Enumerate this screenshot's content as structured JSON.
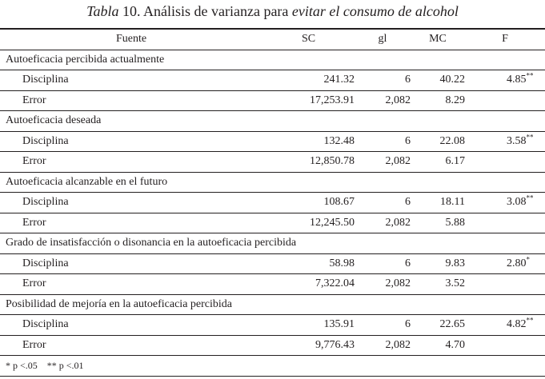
{
  "title": {
    "prefix": "Tabla",
    "number": "10.",
    "middle": "Análisis de varianza para",
    "italic": "evitar el consumo de alcohol"
  },
  "headers": {
    "fuente": "Fuente",
    "sc": "SC",
    "gl": "gl",
    "mc": "MC",
    "f": "F"
  },
  "sections": [
    {
      "name": "Autoeficacia percibida actualmente",
      "rows": [
        {
          "label": "Disciplina",
          "sc": "241.32",
          "gl": "6",
          "mc": "40.22",
          "f": "4.85",
          "sig": "**"
        },
        {
          "label": "Error",
          "sc": "17,253.91",
          "gl": "2,082",
          "mc": "8.29",
          "f": "",
          "sig": ""
        }
      ]
    },
    {
      "name": "Autoeficacia deseada",
      "rows": [
        {
          "label": "Disciplina",
          "sc": "132.48",
          "gl": "6",
          "mc": "22.08",
          "f": "3.58",
          "sig": "**"
        },
        {
          "label": "Error",
          "sc": "12,850.78",
          "gl": "2,082",
          "mc": "6.17",
          "f": "",
          "sig": ""
        }
      ]
    },
    {
      "name": "Autoeficacia alcanzable en el futuro",
      "rows": [
        {
          "label": "Disciplina",
          "sc": "108.67",
          "gl": "6",
          "mc": "18.11",
          "f": "3.08",
          "sig": "**"
        },
        {
          "label": "Error",
          "sc": "12,245.50",
          "gl": "2,082",
          "mc": "5.88",
          "f": "",
          "sig": ""
        }
      ]
    },
    {
      "name": "Grado de insatisfacción o disonancia en la autoeficacia percibida",
      "rows": [
        {
          "label": "Disciplina",
          "sc": "58.98",
          "gl": "6",
          "mc": "9.83",
          "f": "2.80",
          "sig": "*"
        },
        {
          "label": "Error",
          "sc": "7,322.04",
          "gl": "2,082",
          "mc": "3.52",
          "f": "",
          "sig": ""
        }
      ]
    },
    {
      "name": "Posibilidad de mejoría en la autoeficacia percibida",
      "rows": [
        {
          "label": "Disciplina",
          "sc": "135.91",
          "gl": "6",
          "mc": "22.65",
          "f": "4.82",
          "sig": "**"
        },
        {
          "label": "Error",
          "sc": "9,776.43",
          "gl": "2,082",
          "mc": "4.70",
          "f": "",
          "sig": ""
        }
      ]
    }
  ],
  "footnote": "* p <.05    ** p <.01"
}
